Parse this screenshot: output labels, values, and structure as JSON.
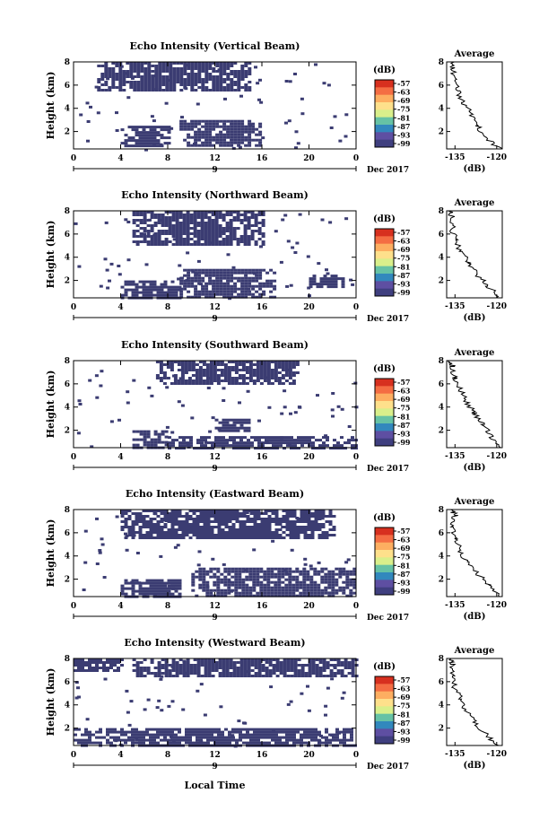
{
  "figure": {
    "xlabel": "Local Time",
    "date_label": "Dec 2017",
    "colorbar_unit": "(dB)",
    "colorbar_ticks": [
      "-57",
      "-63",
      "-69",
      "-75",
      "-81",
      "-87",
      "-93",
      "-99"
    ],
    "colorbar_colors": [
      "#d7301f",
      "#f46d43",
      "#fdae61",
      "#fee08b",
      "#d9ef8b",
      "#66c2a5",
      "#3288bd",
      "#5e4fa2",
      "#3f3f7f"
    ],
    "heatmap_fill_color": "#3b3c72",
    "average_title": "Average",
    "average_xlabel": "(dB)",
    "date_axis_tick": "9"
  },
  "chart_data": [
    {
      "type": "heatmap",
      "title": "Echo Intensity (Vertical Beam)",
      "ylabel": "Height (km)",
      "x_ticks": [
        "0",
        "4",
        "8",
        "12",
        "16",
        "20",
        "0"
      ],
      "xlim": [
        0,
        24
      ],
      "y_ticks": [
        "2",
        "4",
        "6",
        "8"
      ],
      "ylim": [
        0.5,
        8
      ],
      "clusters": [
        {
          "x": [
            4,
            8
          ],
          "y": [
            0.8,
            2.5
          ]
        },
        {
          "x": [
            9,
            16
          ],
          "y": [
            0.8,
            3.0
          ]
        },
        {
          "x": [
            2,
            15
          ],
          "y": [
            5.5,
            8.0
          ]
        }
      ],
      "average": {
        "x_ticks": [
          "-135",
          "-120"
        ],
        "xlim": [
          -138,
          -118
        ],
        "y_ticks": [
          "2",
          "4",
          "6",
          "8"
        ],
        "profile": [
          [
            -119,
            0.5
          ],
          [
            -124,
            1.5
          ],
          [
            -127,
            2.5
          ],
          [
            -129,
            3.5
          ],
          [
            -132,
            4.5
          ],
          [
            -134,
            5.5
          ],
          [
            -135,
            6.5
          ],
          [
            -136,
            7.5
          ],
          [
            -136,
            8
          ]
        ]
      }
    },
    {
      "type": "heatmap",
      "title": "Echo Intensity (Northward Beam)",
      "ylabel": "Height (km)",
      "x_ticks": [
        "0",
        "4",
        "8",
        "12",
        "16",
        "20",
        "0"
      ],
      "xlim": [
        0,
        24
      ],
      "y_ticks": [
        "2",
        "4",
        "6",
        "8"
      ],
      "ylim": [
        0.5,
        8
      ],
      "clusters": [
        {
          "x": [
            4,
            9
          ],
          "y": [
            0.5,
            2.0
          ]
        },
        {
          "x": [
            9,
            17
          ],
          "y": [
            0.5,
            3.0
          ]
        },
        {
          "x": [
            20,
            23
          ],
          "y": [
            1.5,
            2.5
          ]
        },
        {
          "x": [
            5,
            16
          ],
          "y": [
            5.0,
            8.0
          ]
        }
      ],
      "average": {
        "x_ticks": [
          "-135",
          "-120"
        ],
        "xlim": [
          -138,
          -118
        ],
        "y_ticks": [
          "2",
          "4",
          "6",
          "8"
        ],
        "profile": [
          [
            -119,
            0.5
          ],
          [
            -123,
            1.5
          ],
          [
            -127,
            2.5
          ],
          [
            -130,
            3.5
          ],
          [
            -133,
            4.5
          ],
          [
            -135,
            5.5
          ],
          [
            -136,
            6.5
          ],
          [
            -136,
            7.5
          ],
          [
            -137,
            8
          ]
        ]
      }
    },
    {
      "type": "heatmap",
      "title": "Echo Intensity (Southward Beam)",
      "ylabel": "Height (km)",
      "x_ticks": [
        "0",
        "4",
        "8",
        "12",
        "16",
        "20",
        "0"
      ],
      "xlim": [
        0,
        24
      ],
      "y_ticks": [
        "2",
        "4",
        "6",
        "8"
      ],
      "ylim": [
        0.5,
        8
      ],
      "clusters": [
        {
          "x": [
            5,
            8
          ],
          "y": [
            0.5,
            2.0
          ]
        },
        {
          "x": [
            8,
            24
          ],
          "y": [
            0.5,
            1.5
          ]
        },
        {
          "x": [
            12,
            15
          ],
          "y": [
            2.0,
            3.0
          ]
        },
        {
          "x": [
            7,
            19
          ],
          "y": [
            6.0,
            8.0
          ]
        }
      ],
      "average": {
        "x_ticks": [
          "-135",
          "-120"
        ],
        "xlim": [
          -138,
          -118
        ],
        "y_ticks": [
          "2",
          "4",
          "6",
          "8"
        ],
        "profile": [
          [
            -119,
            0.5
          ],
          [
            -122,
            1.5
          ],
          [
            -125,
            2.5
          ],
          [
            -128,
            3.5
          ],
          [
            -131,
            4.5
          ],
          [
            -133,
            5.5
          ],
          [
            -135,
            6.5
          ],
          [
            -136,
            7.5
          ],
          [
            -137,
            8
          ]
        ]
      }
    },
    {
      "type": "heatmap",
      "title": "Echo Intensity (Eastward Beam)",
      "ylabel": "Height (km)",
      "x_ticks": [
        "0",
        "4",
        "8",
        "12",
        "16",
        "20",
        "0"
      ],
      "xlim": [
        0,
        24
      ],
      "y_ticks": [
        "2",
        "4",
        "6",
        "8"
      ],
      "ylim": [
        0.5,
        8
      ],
      "clusters": [
        {
          "x": [
            4,
            9
          ],
          "y": [
            0.5,
            2.0
          ]
        },
        {
          "x": [
            10,
            24
          ],
          "y": [
            0.5,
            3.0
          ]
        },
        {
          "x": [
            4,
            22
          ],
          "y": [
            5.5,
            8.0
          ]
        }
      ],
      "average": {
        "x_ticks": [
          "-135",
          "-120"
        ],
        "xlim": [
          -138,
          -118
        ],
        "y_ticks": [
          "2",
          "4",
          "6",
          "8"
        ],
        "profile": [
          [
            -119,
            0.5
          ],
          [
            -123,
            1.5
          ],
          [
            -127,
            2.5
          ],
          [
            -131,
            3.5
          ],
          [
            -133,
            4.5
          ],
          [
            -135,
            5.5
          ],
          [
            -136,
            6.5
          ],
          [
            -135,
            7.5
          ],
          [
            -136,
            8
          ]
        ]
      }
    },
    {
      "type": "heatmap",
      "title": "Echo Intensity (Westward Beam)",
      "ylabel": "Height (km)",
      "x_ticks": [
        "0",
        "4",
        "8",
        "12",
        "16",
        "20",
        "0"
      ],
      "xlim": [
        0,
        24
      ],
      "y_ticks": [
        "2",
        "4",
        "6",
        "8"
      ],
      "ylim": [
        0.5,
        8
      ],
      "clusters": [
        {
          "x": [
            0,
            24
          ],
          "y": [
            0.5,
            2.0
          ]
        },
        {
          "x": [
            5,
            24
          ],
          "y": [
            6.5,
            8.0
          ]
        },
        {
          "x": [
            0,
            4
          ],
          "y": [
            7.0,
            8.0
          ]
        }
      ],
      "average": {
        "x_ticks": [
          "-135",
          "-120"
        ],
        "xlim": [
          -138,
          -118
        ],
        "y_ticks": [
          "2",
          "4",
          "6",
          "8"
        ],
        "profile": [
          [
            -120,
            0.5
          ],
          [
            -124,
            1.5
          ],
          [
            -128,
            2.5
          ],
          [
            -131,
            3.5
          ],
          [
            -133,
            4.5
          ],
          [
            -135,
            5.5
          ],
          [
            -136,
            6.5
          ],
          [
            -136,
            7.5
          ],
          [
            -137,
            8
          ]
        ]
      }
    }
  ]
}
